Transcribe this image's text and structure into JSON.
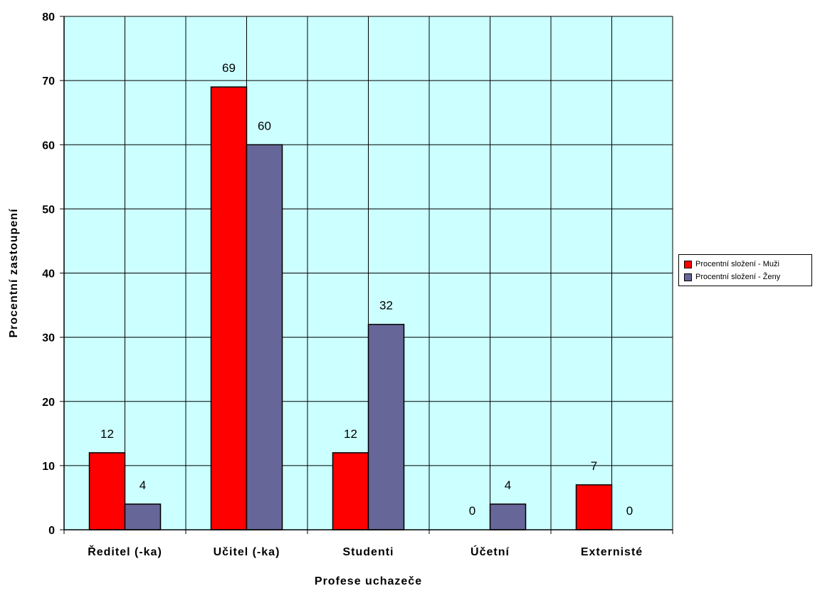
{
  "chart_data": {
    "type": "bar",
    "categories": [
      "Ředitel (-ka)",
      "Učitel (-ka)",
      "Studenti",
      "Účetní",
      "Externisté"
    ],
    "category_labels": [
      "Ředitel (-ka)",
      "Učitel (-ka)",
      "Studenti",
      "Účetní",
      "Externisté"
    ],
    "series": [
      {
        "name": "Procentní složení - Muži",
        "color": "#ff0000",
        "values": [
          12,
          69,
          12,
          0,
          7
        ]
      },
      {
        "name": "Procentní složení - Ženy",
        "color": "#666699",
        "values": [
          4,
          60,
          32,
          4,
          0
        ]
      }
    ],
    "data_labels": [
      [
        "12",
        "69",
        "12",
        "0",
        "7"
      ],
      [
        "4",
        "60",
        "32",
        "4",
        "0"
      ]
    ],
    "xlabel": "Profese uchazeče",
    "ylabel": "Procentní zastoupení",
    "ylim": [
      0,
      80
    ],
    "yticks": [
      0,
      10,
      20,
      30,
      40,
      50,
      60,
      70,
      80
    ],
    "ytick_labels": [
      "0",
      "10",
      "20",
      "30",
      "40",
      "50",
      "60",
      "70",
      "80"
    ],
    "grid": true,
    "plot_background": "#ccffff",
    "legend_position": "right"
  }
}
